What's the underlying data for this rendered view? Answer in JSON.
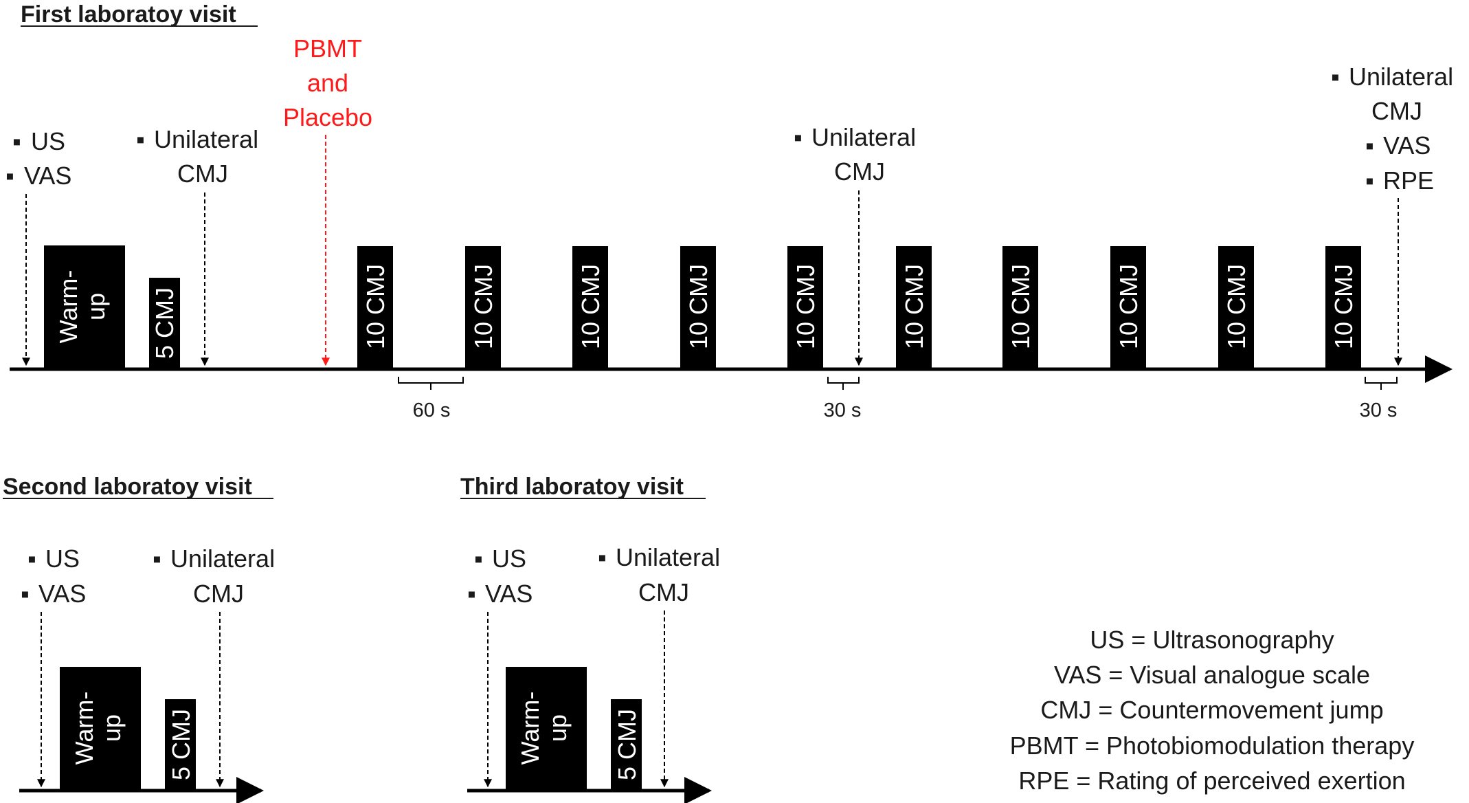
{
  "headings": {
    "first": "First laboratoy visit",
    "second": "Second laboratoy visit",
    "third": "Third laboratoy visit"
  },
  "bullet": "▪",
  "labels": {
    "us": "US",
    "vas": "VAS",
    "unilateral": "Unilateral",
    "cmj": "CMJ",
    "rpe": "RPE",
    "pbmt_1": "PBMT",
    "pbmt_2": "and",
    "pbmt_3": "Placebo"
  },
  "blocks": {
    "warmup_1": "Warm-",
    "warmup_2": "up",
    "five_cmj": "5 CMJ",
    "ten_cmj": "10 CMJ"
  },
  "durations": {
    "sixty": "60 s",
    "thirty_mid": "30 s",
    "thirty_end": "30 s"
  },
  "legend": [
    "US = Ultrasonography",
    "VAS = Visual analogue scale",
    "CMJ = Countermovement jump",
    "PBMT = Photobiomodulation therapy",
    "RPE = Rating of perceived exertion"
  ],
  "colors": {
    "pbmt_red": "#ff1a1a",
    "block_black": "#000000"
  }
}
